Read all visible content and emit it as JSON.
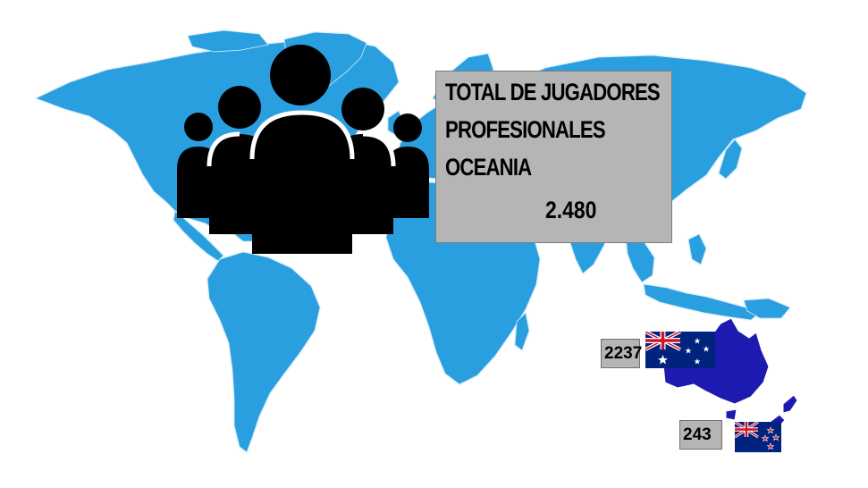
{
  "info_box": {
    "line1": "TOTAL DE JUGADORES",
    "line2": "PROFESIONALES",
    "line3": "OCEANIA",
    "total": "2.480"
  },
  "countries": [
    {
      "name": "Australia",
      "players": "2237",
      "flag_icon": "australia-flag-icon",
      "map_color": "#1c1ab0"
    },
    {
      "name": "New Zealand",
      "players": "243",
      "flag_icon": "new-zealand-flag-icon",
      "map_color": "#1c1ab0"
    }
  ],
  "colors": {
    "map_land": "#2a9fe0",
    "oceania_highlight": "#1c1ab0",
    "people_icon": "#000000",
    "box_background": "#b5b5b5"
  },
  "icons": [
    "people-group-icon"
  ]
}
